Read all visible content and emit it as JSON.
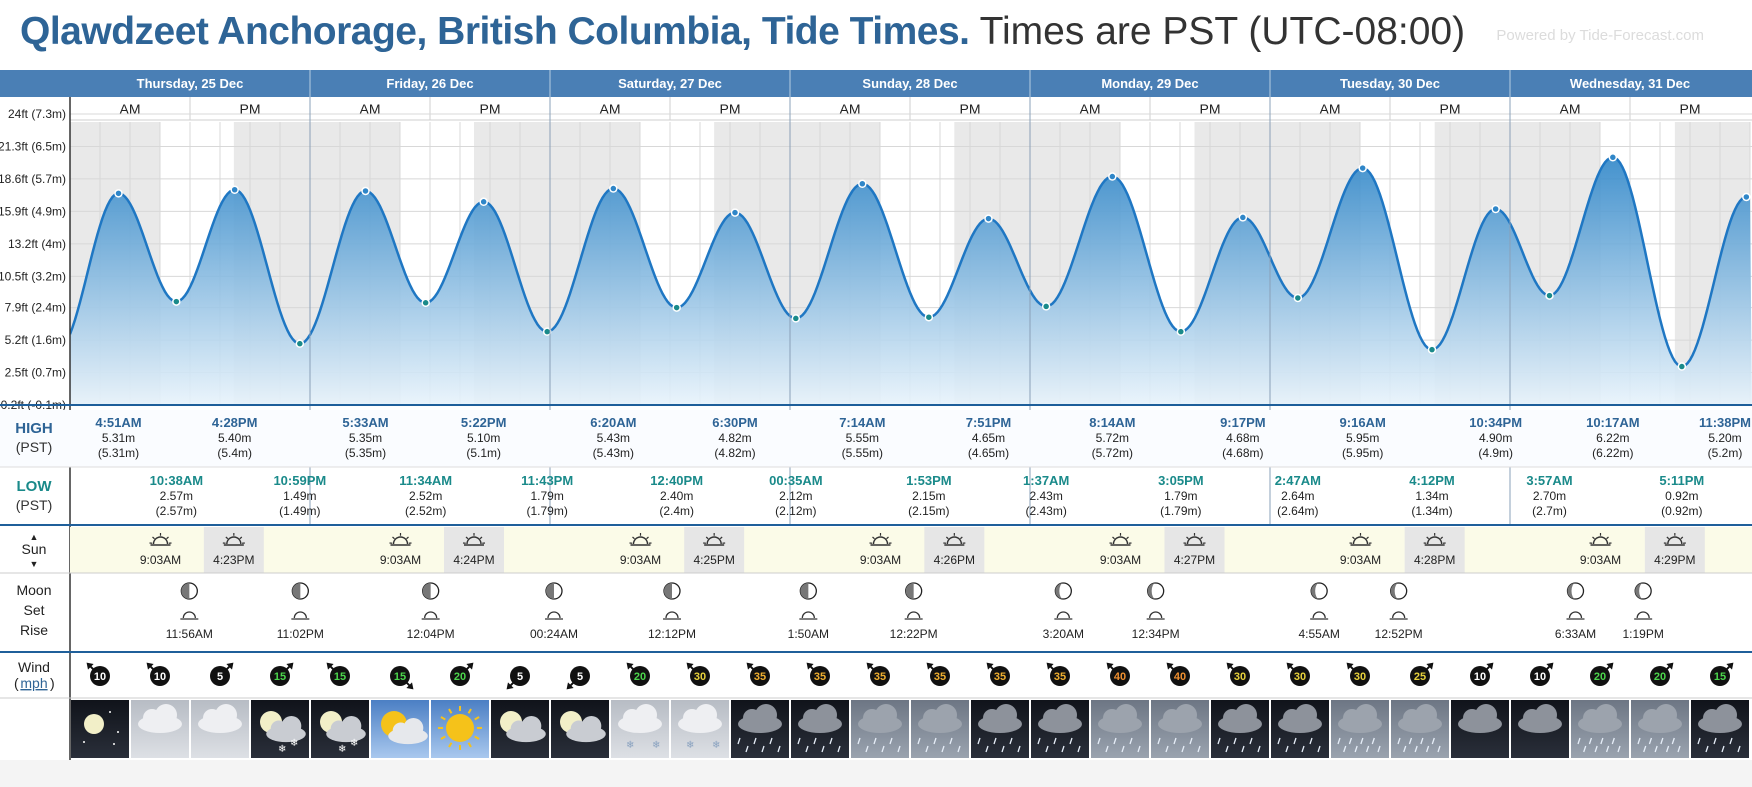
{
  "header": {
    "title": "Qlawdzeet Anchorage, British Columbia, Tide Times.",
    "timezone": "Times are PST (UTC-08:00)",
    "powered": "Powered by Tide-Forecast.com"
  },
  "days": [
    "Thursday, 25 Dec",
    "Friday, 26 Dec",
    "Saturday, 27 Dec",
    "Sunday, 28 Dec",
    "Monday, 29 Dec",
    "Tuesday, 30 Dec",
    "Wednesday, 31 Dec"
  ],
  "ampm": [
    "AM",
    "PM"
  ],
  "y_ticks": [
    "24ft (7.3m)",
    "21.3ft (6.5m)",
    "18.6ft (5.7m)",
    "15.9ft (4.9m)",
    "13.2ft (4m)",
    "10.5ft (3.2m)",
    "7.9ft (2.4m)",
    "5.2ft (1.6m)",
    "2.5ft (0.7m)",
    "-0.2ft (-0.1m)"
  ],
  "labels": {
    "high": "HIGH",
    "low": "LOW",
    "pst": "(PST)",
    "sun": "Sun",
    "moon": "Moon",
    "set": "Set",
    "rise": "Rise",
    "wind": "Wind",
    "wind_unit": "mph"
  },
  "chart_data": {
    "type": "area",
    "ylabel": "",
    "ylim": [
      -0.2,
      24
    ],
    "units": "ft",
    "x_start": "Thursday, 25 Dec 12:00AM",
    "series": [
      {
        "name": "",
        "points": [
          {
            "t": "4:51AM",
            "day": "Thursday, 25 Dec",
            "kind": "high",
            "m": 5.31,
            "ft": 17.4
          },
          {
            "t": "10:38AM",
            "day": "Thursday, 25 Dec",
            "kind": "low",
            "m": 2.57,
            "ft": 8.4
          },
          {
            "t": "4:28PM",
            "day": "Thursday, 25 Dec",
            "kind": "high",
            "m": 5.4,
            "ft": 17.7
          },
          {
            "t": "10:59PM",
            "day": "Thursday, 25 Dec",
            "kind": "low",
            "m": 1.49,
            "ft": 4.9
          },
          {
            "t": "5:33AM",
            "day": "Friday, 26 Dec",
            "kind": "high",
            "m": 5.35,
            "ft": 17.6
          },
          {
            "t": "11:34AM",
            "day": "Friday, 26 Dec",
            "kind": "low",
            "m": 2.52,
            "ft": 8.3
          },
          {
            "t": "5:22PM",
            "day": "Friday, 26 Dec",
            "kind": "high",
            "m": 5.1,
            "ft": 16.7
          },
          {
            "t": "11:43PM",
            "day": "Friday, 26 Dec",
            "kind": "low",
            "m": 1.79,
            "ft": 5.9
          },
          {
            "t": "6:20AM",
            "day": "Saturday, 27 Dec",
            "kind": "high",
            "m": 5.43,
            "ft": 17.8
          },
          {
            "t": "12:40PM",
            "day": "Saturday, 27 Dec",
            "kind": "low",
            "m": 2.4,
            "ft": 7.9
          },
          {
            "t": "6:30PM",
            "day": "Saturday, 27 Dec",
            "kind": "high",
            "m": 4.82,
            "ft": 15.8
          },
          {
            "t": "00:35AM",
            "day": "Sunday, 28 Dec",
            "kind": "low",
            "m": 2.12,
            "ft": 7.0
          },
          {
            "t": "7:14AM",
            "day": "Sunday, 28 Dec",
            "kind": "high",
            "m": 5.55,
            "ft": 18.2
          },
          {
            "t": "1:53PM",
            "day": "Sunday, 28 Dec",
            "kind": "low",
            "m": 2.15,
            "ft": 7.1
          },
          {
            "t": "7:51PM",
            "day": "Sunday, 28 Dec",
            "kind": "high",
            "m": 4.65,
            "ft": 15.3
          },
          {
            "t": "1:37AM",
            "day": "Monday, 29 Dec",
            "kind": "low",
            "m": 2.43,
            "ft": 8.0
          },
          {
            "t": "8:14AM",
            "day": "Monday, 29 Dec",
            "kind": "high",
            "m": 5.72,
            "ft": 18.8
          },
          {
            "t": "3:05PM",
            "day": "Monday, 29 Dec",
            "kind": "low",
            "m": 1.79,
            "ft": 5.9
          },
          {
            "t": "9:17PM",
            "day": "Monday, 29 Dec",
            "kind": "high",
            "m": 4.68,
            "ft": 15.4
          },
          {
            "t": "2:47AM",
            "day": "Tuesday, 30 Dec",
            "kind": "low",
            "m": 2.64,
            "ft": 8.7
          },
          {
            "t": "9:16AM",
            "day": "Tuesday, 30 Dec",
            "kind": "high",
            "m": 5.95,
            "ft": 19.5
          },
          {
            "t": "4:12PM",
            "day": "Tuesday, 30 Dec",
            "kind": "low",
            "m": 1.34,
            "ft": 4.4
          },
          {
            "t": "10:34PM",
            "day": "Tuesday, 30 Dec",
            "kind": "high",
            "m": 4.9,
            "ft": 16.1
          },
          {
            "t": "3:57AM",
            "day": "Wednesday, 31 Dec",
            "kind": "low",
            "m": 2.7,
            "ft": 8.9
          },
          {
            "t": "10:17AM",
            "day": "Wednesday, 31 Dec",
            "kind": "high",
            "m": 6.22,
            "ft": 20.4
          },
          {
            "t": "5:11PM",
            "day": "Wednesday, 31 Dec",
            "kind": "low",
            "m": 0.92,
            "ft": 3.0
          },
          {
            "t": "11:38PM",
            "day": "Wednesday, 31 Dec",
            "kind": "high",
            "m": 5.2,
            "ft": 17.1
          }
        ]
      }
    ]
  },
  "highs": [
    {
      "time": "4:51AM",
      "m": "5.31m",
      "mp": "(5.31m)"
    },
    {
      "time": "4:28PM",
      "m": "5.40m",
      "mp": "(5.4m)"
    },
    {
      "time": "5:33AM",
      "m": "5.35m",
      "mp": "(5.35m)"
    },
    {
      "time": "5:22PM",
      "m": "5.10m",
      "mp": "(5.1m)"
    },
    {
      "time": "6:20AM",
      "m": "5.43m",
      "mp": "(5.43m)"
    },
    {
      "time": "6:30PM",
      "m": "4.82m",
      "mp": "(4.82m)"
    },
    {
      "time": "7:14AM",
      "m": "5.55m",
      "mp": "(5.55m)"
    },
    {
      "time": "7:51PM",
      "m": "4.65m",
      "mp": "(4.65m)"
    },
    {
      "time": "8:14AM",
      "m": "5.72m",
      "mp": "(5.72m)"
    },
    {
      "time": "9:17PM",
      "m": "4.68m",
      "mp": "(4.68m)"
    },
    {
      "time": "9:16AM",
      "m": "5.95m",
      "mp": "(5.95m)"
    },
    {
      "time": "10:34PM",
      "m": "4.90m",
      "mp": "(4.9m)"
    },
    {
      "time": "10:17AM",
      "m": "6.22m",
      "mp": "(6.22m)"
    },
    {
      "time": "11:38PM",
      "m": "5.20m",
      "mp": "(5.2m)"
    }
  ],
  "lows": [
    {
      "time": "10:38AM",
      "m": "2.57m",
      "mp": "(2.57m)"
    },
    {
      "time": "10:59PM",
      "m": "1.49m",
      "mp": "(1.49m)"
    },
    {
      "time": "11:34AM",
      "m": "2.52m",
      "mp": "(2.52m)"
    },
    {
      "time": "11:43PM",
      "m": "1.79m",
      "mp": "(1.79m)"
    },
    {
      "time": "12:40PM",
      "m": "2.40m",
      "mp": "(2.4m)"
    },
    {
      "time": "00:35AM",
      "m": "2.12m",
      "mp": "(2.12m)"
    },
    {
      "time": "1:53PM",
      "m": "2.15m",
      "mp": "(2.15m)"
    },
    {
      "time": "1:37AM",
      "m": "2.43m",
      "mp": "(2.43m)"
    },
    {
      "time": "3:05PM",
      "m": "1.79m",
      "mp": "(1.79m)"
    },
    {
      "time": "2:47AM",
      "m": "2.64m",
      "mp": "(2.64m)"
    },
    {
      "time": "4:12PM",
      "m": "1.34m",
      "mp": "(1.34m)"
    },
    {
      "time": "3:57AM",
      "m": "2.70m",
      "mp": "(2.7m)"
    },
    {
      "time": "5:11PM",
      "m": "0.92m",
      "mp": "(0.92m)"
    }
  ],
  "sun": [
    {
      "rise": "9:03AM",
      "set": "4:23PM"
    },
    {
      "rise": "9:03AM",
      "set": "4:24PM"
    },
    {
      "rise": "9:03AM",
      "set": "4:25PM"
    },
    {
      "rise": "9:03AM",
      "set": "4:26PM"
    },
    {
      "rise": "9:03AM",
      "set": "4:27PM"
    },
    {
      "rise": "9:03AM",
      "set": "4:28PM"
    },
    {
      "rise": "9:03AM",
      "set": "4:29PM"
    }
  ],
  "moon": [
    {
      "time": "11:56AM",
      "kind": "rise",
      "phase": "first-quarter"
    },
    {
      "time": "11:02PM",
      "kind": "set",
      "phase": "first-quarter"
    },
    {
      "time": "12:04PM",
      "kind": "rise",
      "phase": "first-quarter"
    },
    {
      "time": "00:24AM",
      "kind": "set",
      "phase": "first-quarter"
    },
    {
      "time": "12:12PM",
      "kind": "rise",
      "phase": "first-quarter"
    },
    {
      "time": "1:50AM",
      "kind": "set",
      "phase": "first-quarter"
    },
    {
      "time": "12:22PM",
      "kind": "rise",
      "phase": "first-quarter"
    },
    {
      "time": "3:20AM",
      "kind": "set",
      "phase": "waxing-gibbous"
    },
    {
      "time": "12:34PM",
      "kind": "rise",
      "phase": "waxing-gibbous"
    },
    {
      "time": "4:55AM",
      "kind": "set",
      "phase": "waxing-gibbous"
    },
    {
      "time": "12:52PM",
      "kind": "rise",
      "phase": "waxing-gibbous"
    },
    {
      "time": "6:33AM",
      "kind": "set",
      "phase": "waxing-gibbous"
    },
    {
      "time": "1:19PM",
      "kind": "rise",
      "phase": "waxing-gibbous"
    }
  ],
  "wind": [
    {
      "speed": "10",
      "dir": "nw"
    },
    {
      "speed": "10",
      "dir": "nw"
    },
    {
      "speed": "5",
      "dir": "ne"
    },
    {
      "speed": "15",
      "dir": "ne"
    },
    {
      "speed": "15",
      "dir": "nw"
    },
    {
      "speed": "15",
      "dir": "se"
    },
    {
      "speed": "20",
      "dir": "ne"
    },
    {
      "speed": "5",
      "dir": "sw"
    },
    {
      "speed": "5",
      "dir": "sw"
    },
    {
      "speed": "20",
      "dir": "nw"
    },
    {
      "speed": "30",
      "dir": "nw"
    },
    {
      "speed": "35",
      "dir": "nw"
    },
    {
      "speed": "35",
      "dir": "nw"
    },
    {
      "speed": "35",
      "dir": "nw"
    },
    {
      "speed": "35",
      "dir": "nw"
    },
    {
      "speed": "35",
      "dir": "nw"
    },
    {
      "speed": "35",
      "dir": "nw"
    },
    {
      "speed": "40",
      "dir": "nw"
    },
    {
      "speed": "40",
      "dir": "nw"
    },
    {
      "speed": "30",
      "dir": "nw"
    },
    {
      "speed": "30",
      "dir": "nw"
    },
    {
      "speed": "30",
      "dir": "nw"
    },
    {
      "speed": "25",
      "dir": "ne"
    },
    {
      "speed": "10",
      "dir": "ne"
    },
    {
      "speed": "10",
      "dir": "ne"
    },
    {
      "speed": "20",
      "dir": "ne"
    },
    {
      "speed": "20",
      "dir": "ne"
    },
    {
      "speed": "15",
      "dir": "ne"
    }
  ],
  "wind_colors": {
    "5": "#ffffff",
    "10": "#ffffff",
    "15": "#4cd64c",
    "20": "#4cd64c",
    "25": "#e8d23c",
    "30": "#e8d23c",
    "35": "#f0b030",
    "40": "#f09030"
  },
  "weather": [
    "clear-night",
    "cloudy",
    "cloudy",
    "partly-cloudy-night-snow",
    "partly-cloudy-night-snow",
    "partly-sunny",
    "sunny",
    "partly-cloudy-night",
    "partly-cloudy-night",
    "cloudy-snow",
    "cloudy-snow",
    "rain-night",
    "rain-night",
    "rain",
    "rain",
    "rain-night",
    "rain-night",
    "rain",
    "rain",
    "rain-night",
    "rain-night",
    "heavy-rain",
    "heavy-rain",
    "cloudy-night",
    "cloudy-night",
    "heavy-rain",
    "heavy-rain",
    "rain-night"
  ]
}
